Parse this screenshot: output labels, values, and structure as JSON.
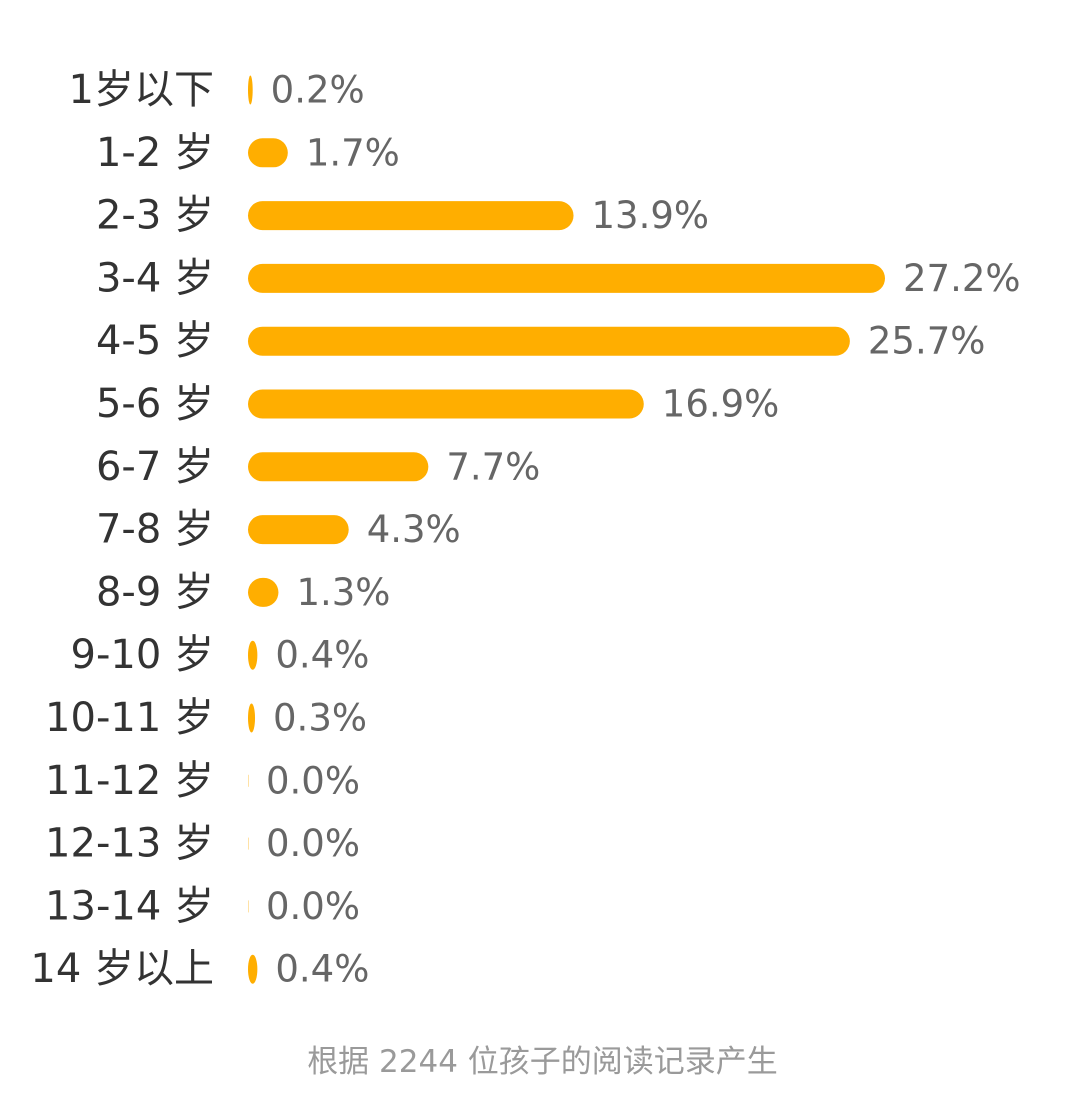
{
  "chart_data": {
    "type": "bar",
    "orientation": "horizontal",
    "categories": [
      "1岁以下",
      "1-2 岁",
      "2-3 岁",
      "3-4 岁",
      "4-5 岁",
      "5-6 岁",
      "6-7 岁",
      "7-8 岁",
      "8-9 岁",
      "9-10 岁",
      "10-11 岁",
      "11-12 岁",
      "12-13 岁",
      "13-14 岁",
      "14 岁以上"
    ],
    "values": [
      0.2,
      1.7,
      13.9,
      27.2,
      25.7,
      16.9,
      7.7,
      4.3,
      1.3,
      0.4,
      0.3,
      0.0,
      0.0,
      0.0,
      0.4
    ],
    "value_labels": [
      "0.2%",
      "1.7%",
      "13.9%",
      "27.2%",
      "25.7%",
      "16.9%",
      "7.7%",
      "4.3%",
      "1.3%",
      "0.4%",
      "0.3%",
      "0.0%",
      "0.0%",
      "0.0%",
      "0.4%"
    ],
    "unit": "%",
    "xlim": [
      0,
      27.2
    ],
    "grid": false,
    "legend": "none",
    "bar_color": "#FFAE00",
    "footnote": "根据 2244 位孩子的阅读记录产生"
  }
}
